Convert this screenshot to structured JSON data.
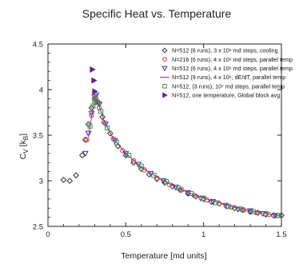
{
  "chart_data": {
    "type": "scatter",
    "title": "Specific Heat vs. Temperature",
    "xlabel": "Temperature [md units]",
    "ylabel_main": "C",
    "ylabel_sub": "V",
    "ylabel_unit_pre": "[k",
    "ylabel_unit_sub": "B",
    "ylabel_unit_post": "]",
    "xlim": [
      0,
      1.5
    ],
    "ylim": [
      2.5,
      4.5
    ],
    "xticks": [
      0,
      0.5,
      1,
      1.5
    ],
    "xtick_labels": [
      "0",
      "0.5",
      "1",
      "1.5"
    ],
    "yticks": [
      2.5,
      3,
      3.5,
      4,
      4.5
    ],
    "ytick_labels": [
      "2.5",
      "3",
      "3.5",
      "4",
      "4.5"
    ],
    "grid": false,
    "legend_position": "top-right",
    "series": [
      {
        "name": "N=512 (6 runs), 3 x 10⁶ md steps, cooling",
        "marker": "diamond",
        "color": "#333333",
        "points": [
          [
            0.1,
            3.01
          ],
          [
            0.14,
            3.0
          ],
          [
            0.18,
            3.06
          ],
          [
            0.22,
            3.28
          ],
          [
            0.24,
            3.45
          ],
          [
            0.26,
            3.62
          ],
          [
            0.28,
            3.8
          ],
          [
            0.3,
            3.9
          ],
          [
            0.32,
            3.86
          ],
          [
            0.35,
            3.7
          ],
          [
            0.4,
            3.52
          ],
          [
            0.45,
            3.38
          ],
          [
            0.5,
            3.28
          ],
          [
            0.55,
            3.2
          ],
          [
            0.6,
            3.13
          ],
          [
            0.65,
            3.07
          ],
          [
            0.7,
            3.02
          ],
          [
            0.75,
            2.98
          ],
          [
            0.8,
            2.94
          ],
          [
            0.85,
            2.9
          ],
          [
            0.9,
            2.86
          ],
          [
            0.95,
            2.83
          ],
          [
            1.0,
            2.8
          ],
          [
            1.05,
            2.77
          ],
          [
            1.1,
            2.75
          ],
          [
            1.15,
            2.72
          ],
          [
            1.2,
            2.7
          ],
          [
            1.25,
            2.68
          ],
          [
            1.3,
            2.66
          ],
          [
            1.35,
            2.65
          ],
          [
            1.4,
            2.63
          ],
          [
            1.45,
            2.62
          ],
          [
            1.5,
            2.62
          ]
        ]
      },
      {
        "name": "N=216 (6 runs), 4 x 10⁶ md steps, parallel temp",
        "marker": "circle",
        "color": "#d04040",
        "points": [
          [
            0.25,
            3.45
          ],
          [
            0.28,
            3.72
          ],
          [
            0.3,
            3.86
          ],
          [
            0.31,
            3.9
          ],
          [
            0.33,
            3.8
          ],
          [
            0.36,
            3.64
          ],
          [
            0.42,
            3.46
          ],
          [
            0.48,
            3.33
          ],
          [
            0.55,
            3.22
          ],
          [
            0.62,
            3.12
          ],
          [
            0.7,
            3.03
          ],
          [
            0.78,
            2.96
          ],
          [
            0.86,
            2.9
          ],
          [
            0.94,
            2.84
          ],
          [
            1.02,
            2.79
          ],
          [
            1.1,
            2.75
          ],
          [
            1.18,
            2.71
          ],
          [
            1.26,
            2.68
          ],
          [
            1.34,
            2.65
          ],
          [
            1.42,
            2.63
          ],
          [
            1.48,
            2.62
          ]
        ]
      },
      {
        "name": "N=512 (6 runs), 4 x 10⁶ md steps, parallel temp",
        "marker": "triangle-down",
        "color": "#333399",
        "points": [
          [
            0.24,
            3.3
          ],
          [
            0.26,
            3.52
          ],
          [
            0.28,
            3.74
          ],
          [
            0.3,
            3.92
          ],
          [
            0.31,
            3.94
          ],
          [
            0.33,
            3.84
          ],
          [
            0.37,
            3.62
          ],
          [
            0.43,
            3.44
          ],
          [
            0.5,
            3.3
          ],
          [
            0.58,
            3.18
          ],
          [
            0.66,
            3.08
          ],
          [
            0.74,
            3.0
          ],
          [
            0.82,
            2.93
          ],
          [
            0.9,
            2.87
          ],
          [
            0.98,
            2.81
          ],
          [
            1.06,
            2.77
          ],
          [
            1.14,
            2.73
          ],
          [
            1.22,
            2.69
          ],
          [
            1.3,
            2.67
          ],
          [
            1.38,
            2.64
          ],
          [
            1.46,
            2.62
          ]
        ]
      },
      {
        "name": "N=512 (9 runs), 4 x 10⁶, dE/dT, parallel temp",
        "marker": "line",
        "color": "#aa3388",
        "points": [
          [
            0.26,
            3.48
          ],
          [
            0.28,
            3.7
          ],
          [
            0.3,
            3.88
          ],
          [
            0.31,
            3.92
          ],
          [
            0.33,
            3.82
          ],
          [
            0.36,
            3.66
          ],
          [
            0.4,
            3.52
          ],
          [
            0.45,
            3.4
          ],
          [
            0.5,
            3.3
          ],
          [
            0.6,
            3.15
          ],
          [
            0.7,
            3.04
          ],
          [
            0.8,
            2.95
          ],
          [
            0.9,
            2.87
          ],
          [
            1.0,
            2.81
          ],
          [
            1.1,
            2.76
          ],
          [
            1.2,
            2.71
          ],
          [
            1.3,
            2.67
          ],
          [
            1.4,
            2.64
          ],
          [
            1.5,
            2.61
          ]
        ]
      },
      {
        "name": "N=512, (3 runs), 10⁷ md steps, parallel temp",
        "marker": "square",
        "color": "#2f9a4a",
        "points": [
          [
            0.27,
            3.6
          ],
          [
            0.29,
            3.82
          ],
          [
            0.3,
            3.9
          ],
          [
            0.32,
            3.86
          ],
          [
            0.34,
            3.76
          ],
          [
            0.38,
            3.58
          ],
          [
            0.44,
            3.42
          ],
          [
            0.52,
            3.28
          ],
          [
            0.6,
            3.16
          ],
          [
            0.68,
            3.06
          ],
          [
            0.76,
            2.99
          ],
          [
            0.84,
            2.92
          ],
          [
            0.92,
            2.86
          ],
          [
            1.0,
            2.81
          ],
          [
            1.08,
            2.76
          ],
          [
            1.16,
            2.72
          ],
          [
            1.24,
            2.69
          ],
          [
            1.32,
            2.66
          ],
          [
            1.4,
            2.64
          ],
          [
            1.48,
            2.62
          ]
        ]
      },
      {
        "name": "N=512, one temperature, Global block avg",
        "marker": "triangle-right",
        "color": "#6a1f8a",
        "points": [
          [
            0.285,
            4.22
          ],
          [
            0.295,
            4.1
          ],
          [
            0.3,
            3.98
          ]
        ]
      }
    ]
  }
}
